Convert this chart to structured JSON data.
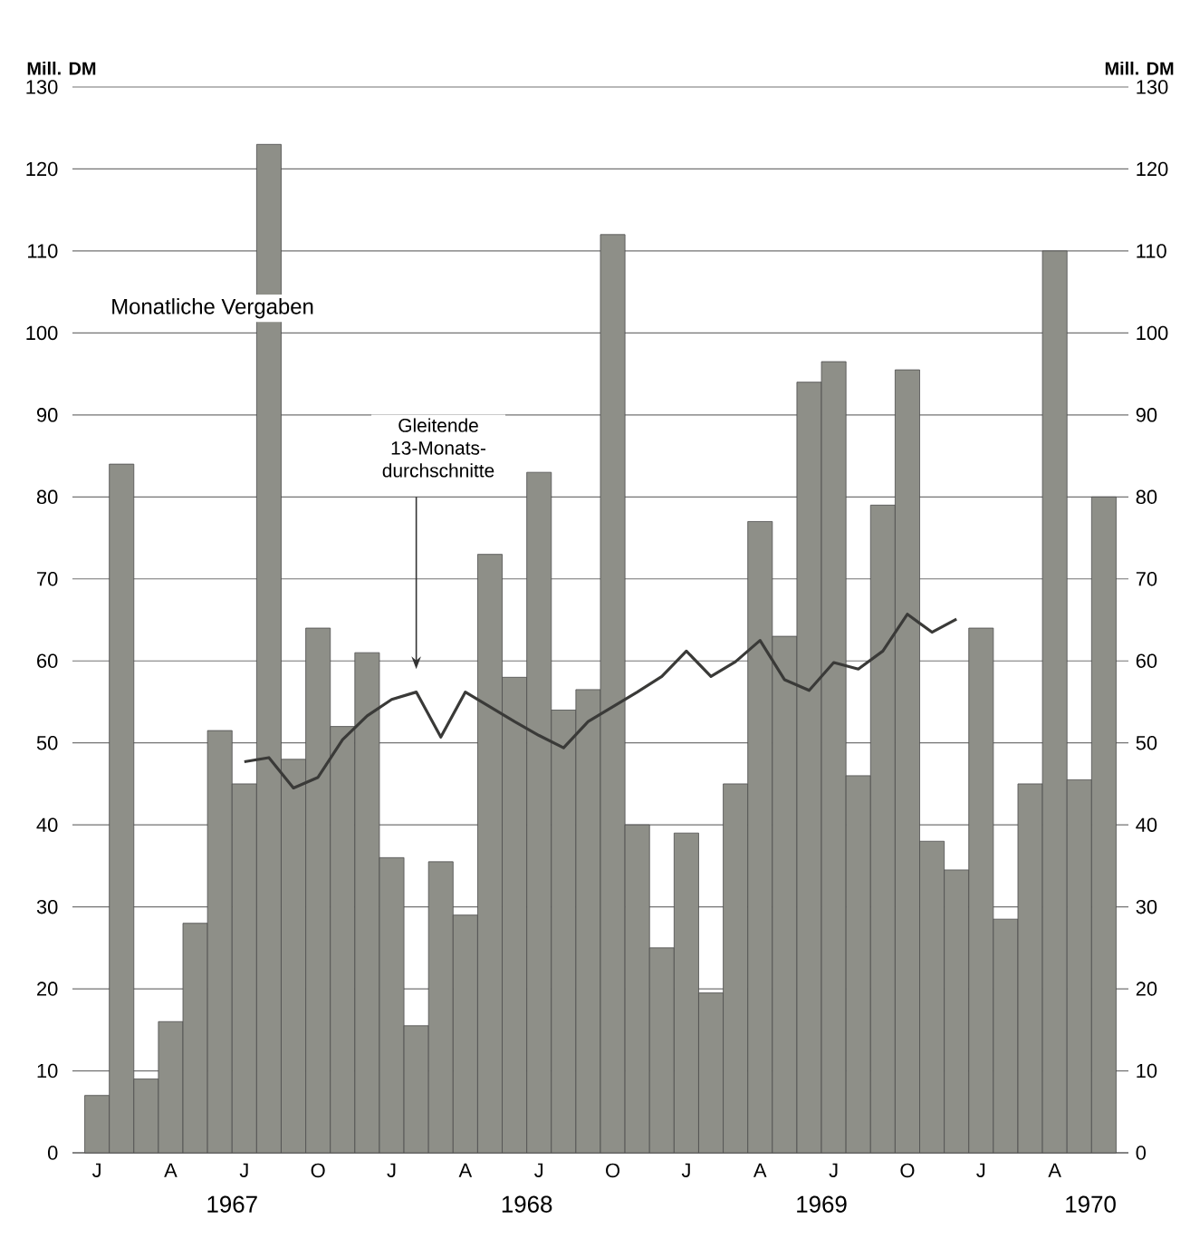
{
  "chart_data": {
    "type": "bar",
    "categories": [
      "J",
      null,
      null,
      "A",
      null,
      null,
      "J",
      null,
      null,
      "O",
      null,
      null,
      "J",
      null,
      null,
      "A",
      null,
      null,
      "J",
      null,
      null,
      "O",
      null,
      null,
      "J",
      null,
      null,
      "A",
      null,
      null,
      "J",
      null,
      null,
      "O",
      null,
      null,
      "J",
      null,
      null,
      "A",
      null,
      null
    ],
    "series": [
      {
        "name": "Monatliche Vergaben",
        "color": "#8e8f88",
        "values": [
          7,
          84,
          9,
          16,
          28,
          51.5,
          45,
          123,
          48,
          64,
          52,
          61,
          36,
          15.5,
          35.5,
          29,
          73,
          58,
          83,
          54,
          56.5,
          112,
          40,
          25,
          39,
          19.5,
          45,
          77,
          63,
          94,
          96.5,
          46,
          79,
          95.5,
          38,
          34.5,
          64,
          28.5,
          45,
          110,
          45.5,
          80
        ]
      },
      {
        "name": "Gleitende 13-Monats-durchschnitte",
        "type": "line",
        "color": "#3a3a38",
        "values": [
          null,
          null,
          null,
          null,
          null,
          null,
          47.7,
          48.2,
          44.5,
          45.8,
          50.4,
          53.3,
          55.3,
          56.2,
          50.7,
          56.2,
          54.4,
          52.6,
          50.9,
          49.4,
          52.6,
          54.4,
          56.2,
          58.1,
          61.2,
          58.1,
          59.9,
          62.5,
          57.7,
          56.4,
          59.8,
          59,
          61.2,
          65.7,
          63.5,
          65.1,
          null,
          null,
          null,
          null,
          null,
          null
        ]
      }
    ],
    "ylabel": "Mill. DM",
    "y2label": "Mill. DM",
    "ylim": [
      0,
      130
    ],
    "yticks": [
      0,
      10,
      20,
      30,
      40,
      50,
      60,
      70,
      80,
      90,
      100,
      110,
      120,
      130
    ],
    "y2lim": [
      0,
      130
    ],
    "y2ticks": [
      0,
      10,
      20,
      30,
      40,
      50,
      60,
      70,
      80,
      90,
      100,
      110,
      120,
      130
    ],
    "grid": "y",
    "annotations": [
      "1967",
      "1968",
      "1969",
      "1970"
    ]
  }
}
